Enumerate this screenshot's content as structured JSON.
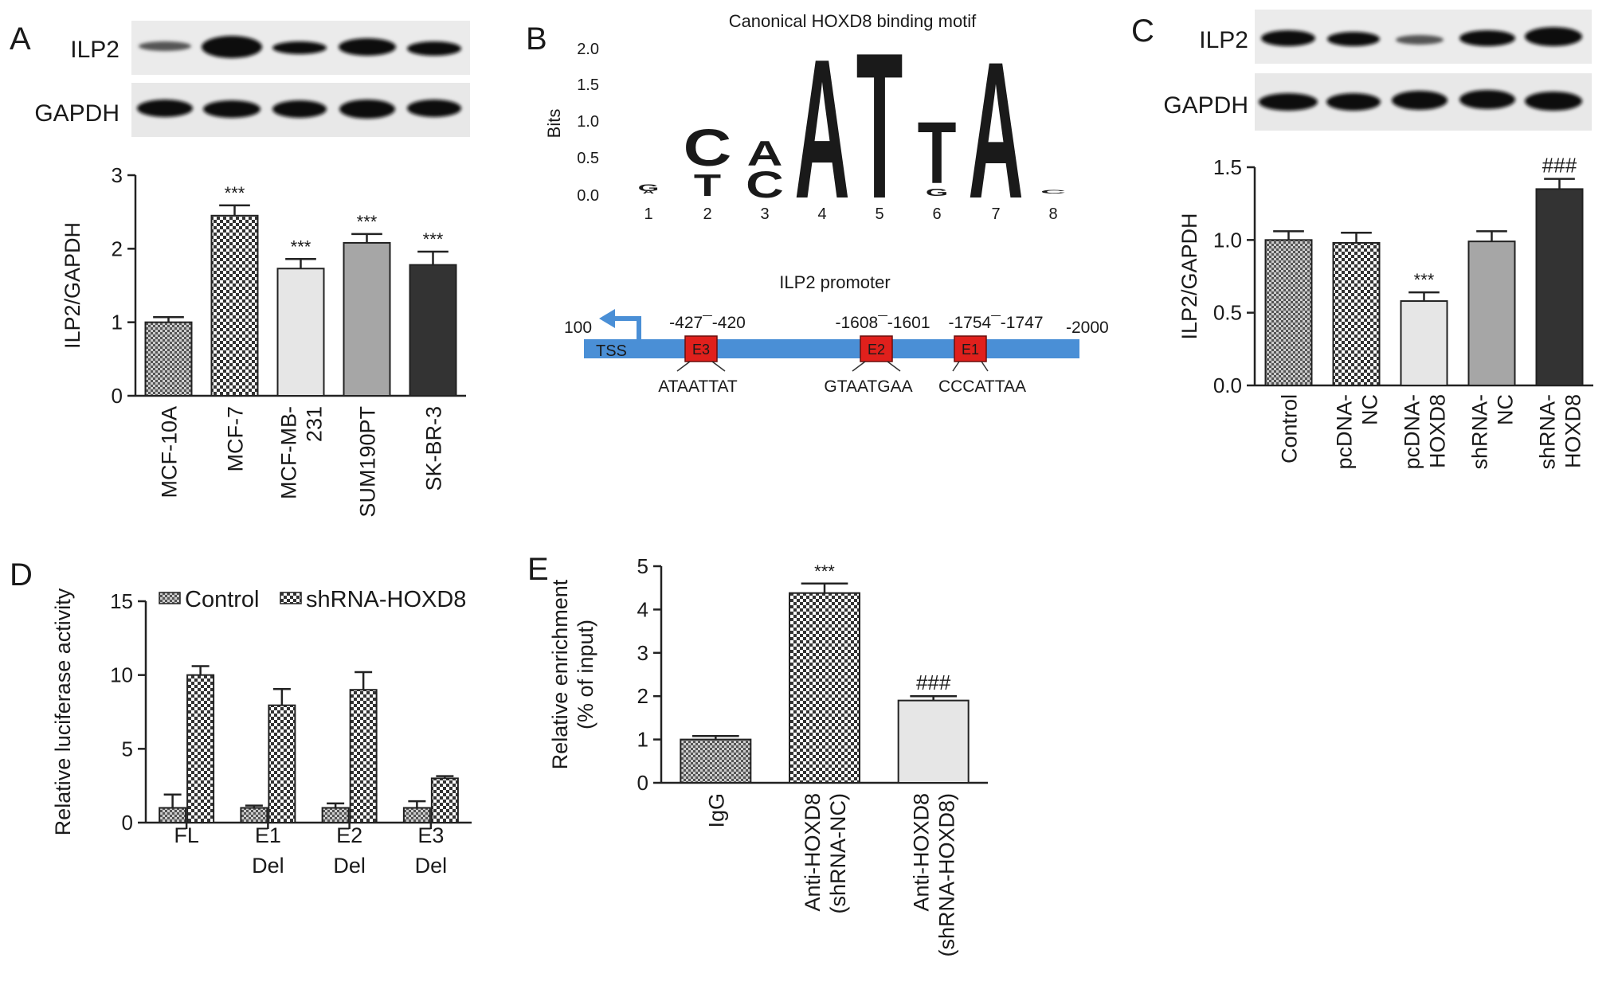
{
  "panels": {
    "A": {
      "letter": "A",
      "blot_labels": [
        "ILP2",
        "GAPDH"
      ]
    },
    "B": {
      "letter": "B",
      "motif_title": "Canonical HOXD8 binding motif",
      "motif_ylabel": "Bits",
      "motif_yticks": [
        "2.0",
        "1.5",
        "1.0",
        "0.5",
        "0.0"
      ],
      "motif_positions": [
        "1",
        "2",
        "3",
        "4",
        "5",
        "6",
        "7",
        "8"
      ],
      "promoter_title": "ILP2 promoter",
      "promoter_start": "100",
      "promoter_end": "-2000",
      "tss": "TSS",
      "sites": [
        {
          "box": "E3",
          "range": "-427¯-420",
          "seq": "ATAATTAT"
        },
        {
          "box": "E2",
          "range": "-1608¯-1601",
          "seq": "GTAATGAA"
        },
        {
          "box": "E1",
          "range": "-1754¯-1747",
          "seq": "CCCATTAA"
        }
      ]
    },
    "C": {
      "letter": "C",
      "blot_labels": [
        "ILP2",
        "GAPDH"
      ]
    },
    "D": {
      "letter": "D"
    },
    "E": {
      "letter": "E"
    }
  },
  "colors": {
    "blue_bar": "#4a8fd6",
    "red_box": "#e0201c",
    "motif_A": "#1e9a3c",
    "motif_C": "#1f5fb8",
    "motif_T": "#d8261c",
    "motif_G": "#f4a21a"
  },
  "chart_data": [
    {
      "panel": "A",
      "type": "bar",
      "ylabel": "ILP2/GAPDH",
      "ylim": [
        0,
        3
      ],
      "yticks": [
        "0",
        "1",
        "2",
        "3"
      ],
      "categories": [
        [
          "MCF-10A"
        ],
        [
          "MCF-7"
        ],
        [
          "MCF-MB-",
          "231"
        ],
        [
          "SUM190PT"
        ],
        [
          "SK-BR-3"
        ]
      ],
      "values": [
        1.0,
        2.45,
        1.73,
        2.08,
        1.78
      ],
      "errors": [
        0.07,
        0.14,
        0.13,
        0.12,
        0.18
      ],
      "annotations": [
        "",
        "***",
        "***",
        "***",
        "***"
      ]
    },
    {
      "panel": "C",
      "type": "bar",
      "ylabel": "ILP2/GAPDH",
      "ylim": [
        0,
        1.5
      ],
      "yticks": [
        "0.0",
        "0.5",
        "1.0",
        "1.5"
      ],
      "categories": [
        [
          "Control"
        ],
        [
          "pcDNA-",
          "NC"
        ],
        [
          "pcDNA-",
          "HOXD8"
        ],
        [
          "shRNA-",
          "NC"
        ],
        [
          "shRNA-",
          "HOXD8"
        ]
      ],
      "values": [
        1.0,
        0.98,
        0.58,
        0.99,
        1.35
      ],
      "errors": [
        0.06,
        0.07,
        0.06,
        0.07,
        0.07
      ],
      "annotations": [
        "",
        "",
        "***",
        "",
        "###"
      ]
    },
    {
      "panel": "D",
      "type": "bar",
      "ylabel": "Relative luciferase activity",
      "ylim": [
        0,
        15
      ],
      "yticks": [
        "0",
        "5",
        "10",
        "15"
      ],
      "categories": [
        [
          "FL"
        ],
        [
          "E1",
          "Del"
        ],
        [
          "E2",
          "Del"
        ],
        [
          "E3",
          "Del"
        ]
      ],
      "series": [
        {
          "name": "Control",
          "values": [
            1.0,
            1.0,
            1.0,
            1.0
          ],
          "errors": [
            0.9,
            0.15,
            0.3,
            0.45
          ]
        },
        {
          "name": "shRNA-HOXD8",
          "values": [
            10.0,
            7.95,
            9.0,
            3.0
          ],
          "errors": [
            0.6,
            1.1,
            1.2,
            0.15
          ]
        }
      ],
      "legend": "top"
    },
    {
      "panel": "E",
      "type": "bar",
      "ylabel": [
        "Relative enrichment",
        "(% of input)"
      ],
      "ylim": [
        0,
        5
      ],
      "yticks": [
        "0",
        "1",
        "2",
        "3",
        "4",
        "5"
      ],
      "categories": [
        [
          "IgG"
        ],
        [
          "Anti-HOXD8",
          "(shRNA-NC)"
        ],
        [
          "Anti-HOXD8",
          "(shRNA-HOXD8)"
        ]
      ],
      "values": [
        1.0,
        4.38,
        1.9
      ],
      "errors": [
        0.08,
        0.22,
        0.1
      ],
      "annotations": [
        "",
        "***",
        "###"
      ]
    }
  ]
}
